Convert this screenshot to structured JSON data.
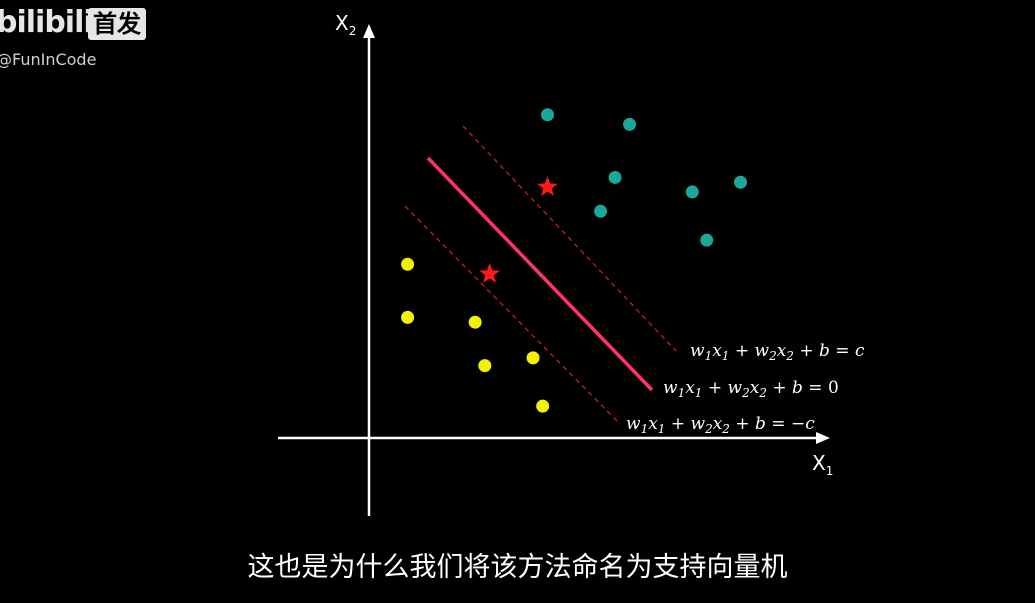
{
  "watermark": {
    "logo_text": "bilibili",
    "badge_text": "首发",
    "user_text": "@FunInCode"
  },
  "diagram": {
    "x_axis_label": {
      "base": "X",
      "sub": "1"
    },
    "y_axis_label": {
      "base": "X",
      "sub": "2"
    },
    "equations": {
      "upper_margin": {
        "lhs_w1": "w",
        "lhs_x1": "x",
        "w2": "w",
        "x2": "x",
        "b": "b",
        "rhs": "c",
        "text": "w1x1 + w2x2 + b = c"
      },
      "hyperplane": {
        "rhs": "0",
        "text": "w1x1 + w2x2 + b = 0"
      },
      "lower_margin": {
        "rhs": "−c",
        "text": "w1x1 + w2x2 + b = −c"
      }
    },
    "colors": {
      "class_positive": "#1aa89a",
      "class_negative": "#f2f200",
      "support_vector": "#ff1a1a",
      "hyperplane": "#ff3366",
      "margin": "#cc2233",
      "axis": "#ffffff"
    },
    "points_positive": [
      {
        "x": 1.85,
        "y": 3.35
      },
      {
        "x": 2.7,
        "y": 3.25
      },
      {
        "x": 2.55,
        "y": 2.7
      },
      {
        "x": 3.35,
        "y": 2.55
      },
      {
        "x": 3.85,
        "y": 2.65
      },
      {
        "x": 2.4,
        "y": 2.35
      },
      {
        "x": 3.5,
        "y": 2.05
      }
    ],
    "points_negative": [
      {
        "x": 0.4,
        "y": 1.8
      },
      {
        "x": 0.4,
        "y": 1.25
      },
      {
        "x": 1.1,
        "y": 1.2
      },
      {
        "x": 1.2,
        "y": 0.75
      },
      {
        "x": 1.7,
        "y": 0.83
      },
      {
        "x": 1.8,
        "y": 0.33
      }
    ],
    "support_vectors": [
      {
        "x": 1.85,
        "y": 2.6,
        "class": "positive"
      },
      {
        "x": 1.25,
        "y": 1.7,
        "class": "negative"
      }
    ]
  },
  "caption": "这也是为什么我们将该方法命名为支持向量机"
}
